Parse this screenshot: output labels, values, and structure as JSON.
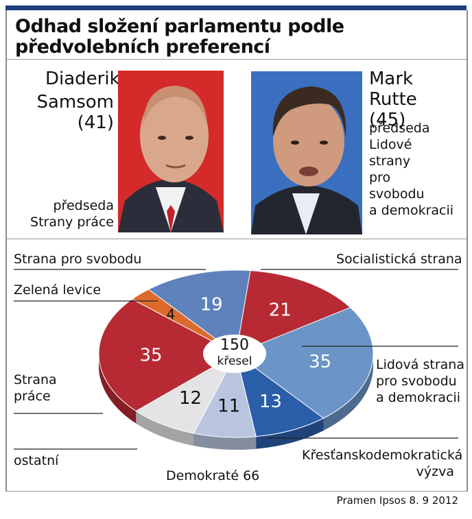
{
  "title": {
    "line1": "Odhad složení parlamentu podle",
    "line2": "předvolebních preferencí"
  },
  "left_person": {
    "name_line1": "Diaderik",
    "name_line2": "Samsom (41)",
    "role_line1": "předseda",
    "role_line2": "Strany práce",
    "photo_bg": "#d42a2a"
  },
  "right_person": {
    "name_line1": "Mark",
    "name_line2": "Rutte (45)",
    "role_lines": [
      "předseda",
      "Lidové",
      "strany",
      "pro",
      "svobodu",
      "a demokracii"
    ],
    "photo_bg": "#3a6fc0"
  },
  "center_label": {
    "line1": "150",
    "line2": "křesel"
  },
  "source": "Pramen Ipsos 8. 9 2012",
  "chart_data": {
    "type": "pie",
    "title": "Odhad složení parlamentu podle předvolebních preferencí",
    "total": 150,
    "unit": "křesel",
    "slices": [
      {
        "name": "Socialistická strana",
        "value": 21,
        "color": "#b72a33",
        "label_lines": [
          "Socialistická strana"
        ]
      },
      {
        "name": "Lidová strana pro svobodu a demokracii",
        "value": 35,
        "color": "#6b95c7",
        "label_lines": [
          "Lidová strana",
          "pro svobodu",
          "a demokracii"
        ]
      },
      {
        "name": "Křesťanskodemokratická výzva",
        "value": 13,
        "color": "#2a5ea8",
        "label_lines": [
          "Křesťanskodemokratická",
          "výzva"
        ]
      },
      {
        "name": "Demokraté 66",
        "value": 11,
        "color": "#b9c4df",
        "label_lines": [
          "Demokraté 66"
        ]
      },
      {
        "name": "ostatní",
        "value": 12,
        "color": "#e4e4e6",
        "label_lines": [
          "ostatní"
        ]
      },
      {
        "name": "Strana práce",
        "value": 35,
        "color": "#b72a33",
        "label_lines": [
          "Strana",
          "práce"
        ]
      },
      {
        "name": "Zelená levice",
        "value": 4,
        "color": "#dc6a2c",
        "label_lines": [
          "Zelená levice"
        ]
      },
      {
        "name": "Strana pro svobodu",
        "value": 19,
        "color": "#5f82bd",
        "label_lines": [
          "Strana pro svobodu"
        ]
      }
    ]
  }
}
